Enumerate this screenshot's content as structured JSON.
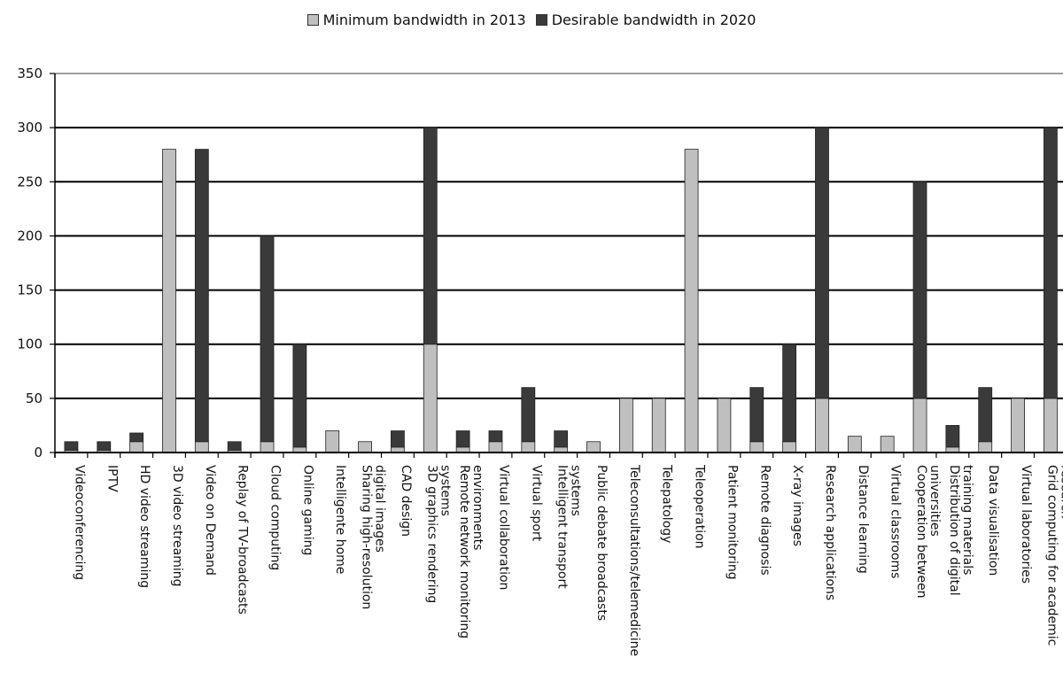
{
  "chart_data": {
    "type": "bar",
    "stacked": true,
    "legend_position": "top",
    "grid": true,
    "ylim": [
      0,
      350
    ],
    "yticks": [
      0,
      50,
      100,
      150,
      200,
      250,
      300,
      350
    ],
    "categories": [
      "Videoconferencing",
      "IPTV",
      "HD video streaming",
      "3D video streaming",
      "Video on Demand",
      "Replay of TV-broadcasts",
      "Cloud computing",
      "Online gaming",
      "Intelligente home",
      "Sharing high-resolution digital images",
      "CAD design",
      "3D graphics rendering systems",
      "Remote network monitoring environments",
      "Virtual collaboration",
      "Virtual sport",
      "Intelligent transport systems",
      "Public debate broadcasts",
      "Teleconsultations/telemedicine",
      "Telepatology",
      "Teleoperation",
      "Patient monitoring",
      "Remote diagnosis",
      "X-ray images",
      "Research applications",
      "Distance learning",
      "Virtual classrooms",
      "Cooperation between universities",
      "Distribution of digital training materials",
      "Data visualisation",
      "Virtual laboratories",
      "Grid computing for academic research"
    ],
    "series": [
      {
        "name": "Minimum bandwidth in 2013",
        "color": "#bfbfbf",
        "values": [
          2,
          2,
          10,
          280,
          10,
          2,
          10,
          5,
          20,
          10,
          5,
          100,
          5,
          10,
          10,
          5,
          10,
          50,
          50,
          280,
          50,
          10,
          10,
          50,
          15,
          15,
          50,
          5,
          10,
          50,
          50
        ]
      },
      {
        "name": "Desirable bandwidth in 2020",
        "color": "#3a3a3a",
        "values": [
          8,
          8,
          8,
          0,
          270,
          8,
          190,
          95,
          0,
          0,
          15,
          200,
          15,
          10,
          50,
          15,
          0,
          0,
          0,
          0,
          0,
          50,
          90,
          250,
          0,
          0,
          200,
          20,
          50,
          0,
          250
        ]
      }
    ]
  }
}
